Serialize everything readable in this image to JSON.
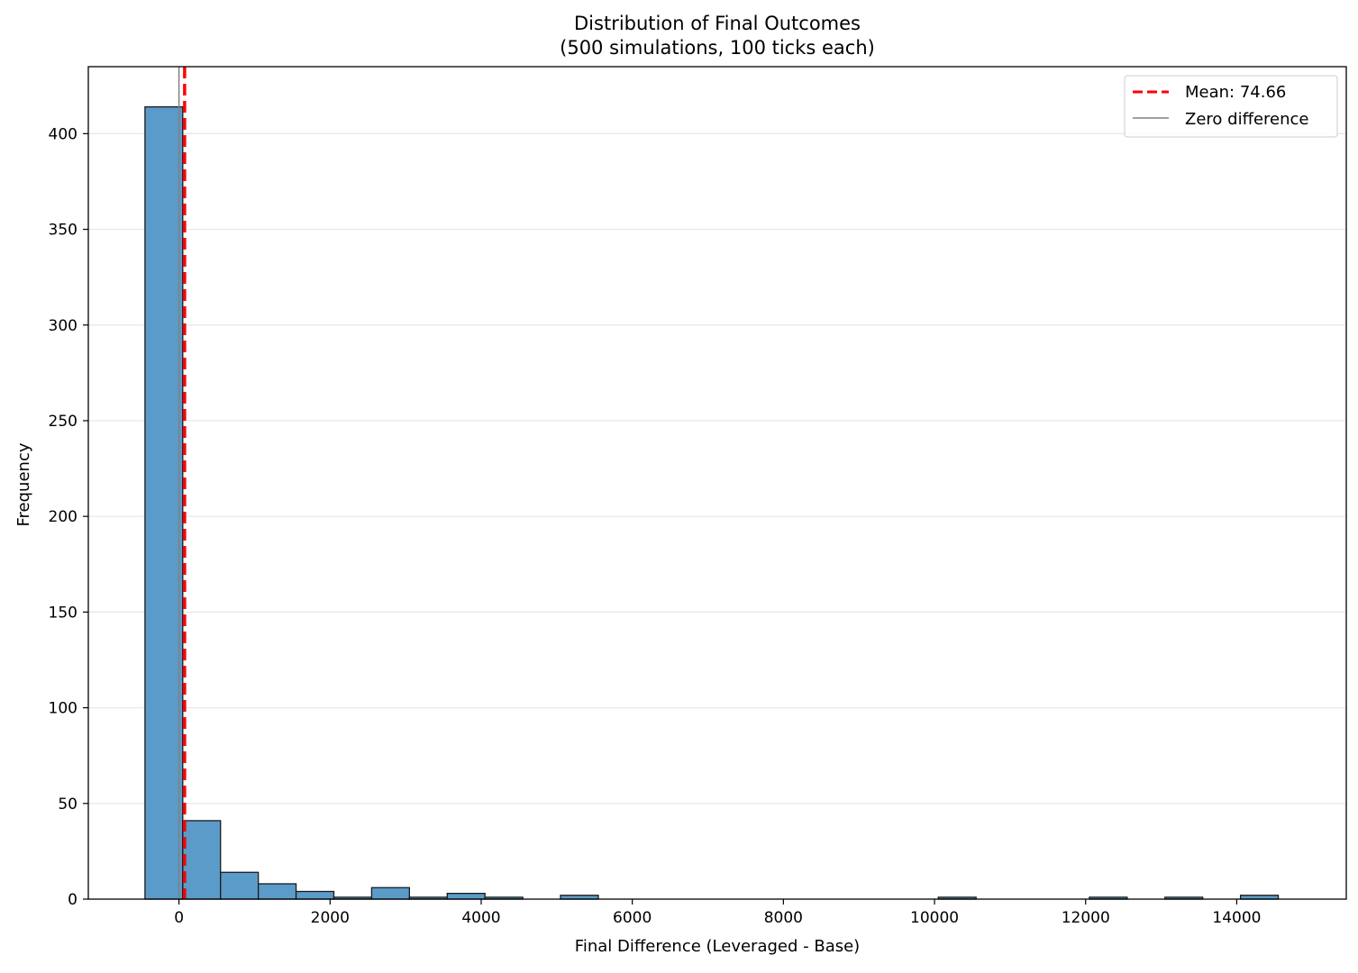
{
  "chart_data": {
    "type": "bar",
    "title": "Distribution of Final Outcomes\n(500 simulations, 100 ticks each)",
    "title_lines": [
      "Distribution of Final Outcomes",
      "(500 simulations, 100 ticks each)"
    ],
    "xlabel": "Final Difference (Leveraged - Base)",
    "ylabel": "Frequency",
    "xlim": [
      -1200,
      15450
    ],
    "ylim": [
      0,
      435
    ],
    "xticks": [
      0,
      2000,
      4000,
      6000,
      8000,
      10000,
      12000,
      14000
    ],
    "yticks": [
      0,
      50,
      100,
      150,
      200,
      250,
      300,
      350,
      400
    ],
    "grid": "y",
    "legend_placement": "top-right",
    "bar_color": "#5b9bc9",
    "bin_width": 500,
    "bins": [
      {
        "x0": -450,
        "x1": 50,
        "count": 414
      },
      {
        "x0": 50,
        "x1": 550,
        "count": 41
      },
      {
        "x0": 550,
        "x1": 1050,
        "count": 14
      },
      {
        "x0": 1050,
        "x1": 1550,
        "count": 8
      },
      {
        "x0": 1550,
        "x1": 2050,
        "count": 4
      },
      {
        "x0": 2050,
        "x1": 2550,
        "count": 1
      },
      {
        "x0": 2550,
        "x1": 3050,
        "count": 6
      },
      {
        "x0": 3050,
        "x1": 3550,
        "count": 1
      },
      {
        "x0": 3550,
        "x1": 4050,
        "count": 3
      },
      {
        "x0": 4050,
        "x1": 4550,
        "count": 1
      },
      {
        "x0": 5050,
        "x1": 5550,
        "count": 2
      },
      {
        "x0": 10050,
        "x1": 10550,
        "count": 1
      },
      {
        "x0": 12050,
        "x1": 12550,
        "count": 1
      },
      {
        "x0": 13050,
        "x1": 13550,
        "count": 1
      },
      {
        "x0": 14050,
        "x1": 14550,
        "count": 2
      }
    ],
    "reference_lines": [
      {
        "name": "Mean: 74.66",
        "x": 74.66,
        "color": "#ff0000",
        "style": "dashed"
      },
      {
        "name": "Zero difference",
        "x": 0,
        "color": "#808080",
        "style": "solid"
      }
    ]
  }
}
